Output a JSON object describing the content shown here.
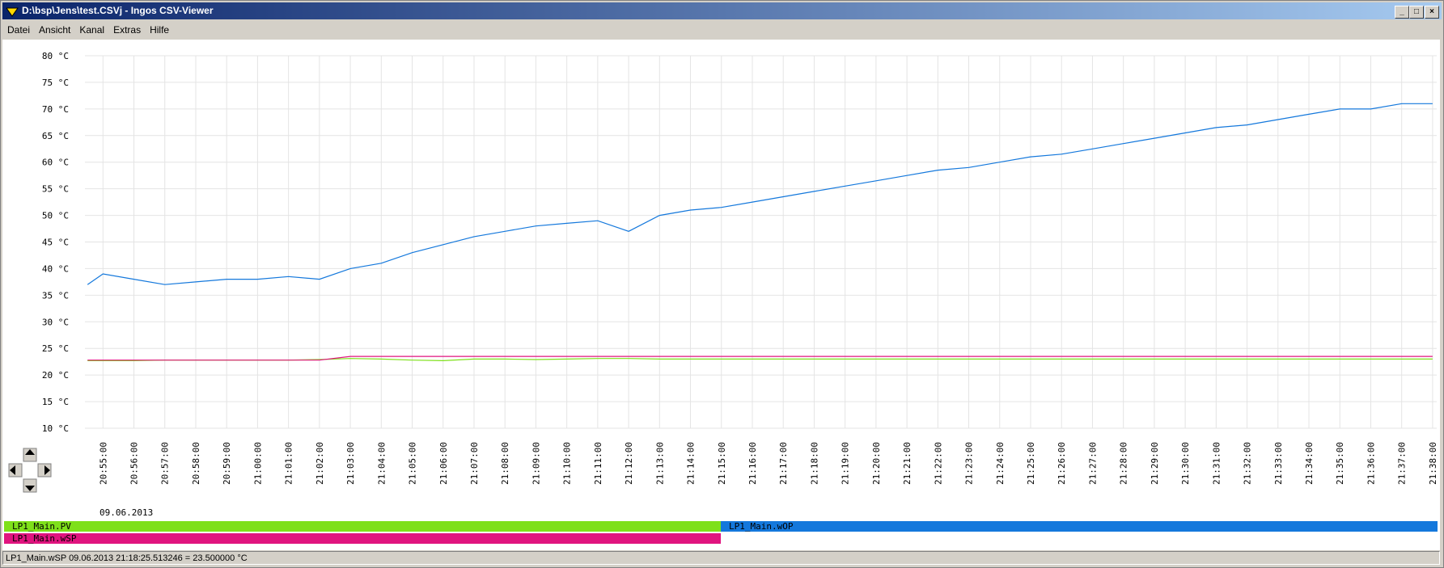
{
  "window": {
    "title": "D:\\bsp\\Jens\\test.CSVj - Ingos CSV-Viewer"
  },
  "menu": [
    "Datei",
    "Ansicht",
    "Kanal",
    "Extras",
    "Hilfe"
  ],
  "chart_data": {
    "type": "line",
    "xlabel": "09.06.2013",
    "x": [
      "20:54:30",
      "20:55:00",
      "20:56:00",
      "20:57:00",
      "20:58:00",
      "20:59:00",
      "21:00:00",
      "21:01:00",
      "21:02:00",
      "21:03:00",
      "21:04:00",
      "21:05:00",
      "21:06:00",
      "21:07:00",
      "21:08:00",
      "21:09:00",
      "21:10:00",
      "21:11:00",
      "21:12:00",
      "21:13:00",
      "21:14:00",
      "21:15:00",
      "21:16:00",
      "21:17:00",
      "21:18:00",
      "21:19:00",
      "21:20:00",
      "21:21:00",
      "21:22:00",
      "21:23:00",
      "21:24:00",
      "21:25:00",
      "21:26:00",
      "21:27:00",
      "21:28:00",
      "21:29:00",
      "21:30:00",
      "21:31:00",
      "21:32:00",
      "21:33:00",
      "21:34:00",
      "21:35:00",
      "21:36:00",
      "21:37:00",
      "21:38:00"
    ],
    "xlim": [
      "20:54:25",
      "21:38:08"
    ],
    "xticks": [
      "20:55:00",
      "20:56:00",
      "20:57:00",
      "20:58:00",
      "20:59:00",
      "21:00:00",
      "21:01:00",
      "21:02:00",
      "21:03:00",
      "21:04:00",
      "21:05:00",
      "21:06:00",
      "21:07:00",
      "21:08:00",
      "21:09:00",
      "21:10:00",
      "21:11:00",
      "21:12:00",
      "21:13:00",
      "21:14:00",
      "21:15:00",
      "21:16:00",
      "21:17:00",
      "21:18:00",
      "21:19:00",
      "21:20:00",
      "21:21:00",
      "21:22:00",
      "21:23:00",
      "21:24:00",
      "21:25:00",
      "21:26:00",
      "21:27:00",
      "21:28:00",
      "21:29:00",
      "21:30:00",
      "21:31:00",
      "21:32:00",
      "21:33:00",
      "21:34:00",
      "21:35:00",
      "21:36:00",
      "21:37:00",
      "21:38:00"
    ],
    "ylim": [
      10,
      80
    ],
    "yticks": [
      {
        "value": 10,
        "label": "10 °C"
      },
      {
        "value": 15,
        "label": "15 °C"
      },
      {
        "value": 20,
        "label": "20 °C"
      },
      {
        "value": 25,
        "label": "25 °C"
      },
      {
        "value": 30,
        "label": "30 °C"
      },
      {
        "value": 35,
        "label": "35 °C"
      },
      {
        "value": 40,
        "label": "40 °C"
      },
      {
        "value": 45,
        "label": "45 °C"
      },
      {
        "value": 50,
        "label": "50 °C"
      },
      {
        "value": 55,
        "label": "55 °C"
      },
      {
        "value": 60,
        "label": "60 °C"
      },
      {
        "value": 65,
        "label": "65 °C"
      },
      {
        "value": 70,
        "label": "70 °C"
      },
      {
        "value": 75,
        "label": "75 °C"
      },
      {
        "value": 80,
        "label": "80 °C"
      }
    ],
    "grid": true,
    "series": [
      {
        "name": "LP1_Main.PV",
        "color": "#7ee01a",
        "values": [
          22.7,
          22.7,
          22.7,
          22.8,
          22.8,
          22.8,
          22.8,
          22.8,
          22.9,
          23.1,
          23.0,
          22.8,
          22.7,
          23.0,
          23.0,
          22.9,
          23.0,
          23.1,
          23.1,
          23.0,
          23.0,
          23.0,
          23.0,
          23.0,
          23.0,
          23.0,
          23.0,
          23.0,
          23.0,
          23.0,
          23.0,
          23.0,
          23.0,
          23.0,
          23.0,
          23.0,
          23.0,
          23.0,
          23.0,
          23.0,
          23.0,
          23.0,
          23.0,
          23.0,
          23.0
        ]
      },
      {
        "name": "LP1_Main.wOP",
        "color": "#1478dc",
        "values": [
          37,
          39,
          38,
          37,
          37.5,
          38,
          38,
          38.5,
          38,
          40,
          41,
          43,
          44.5,
          46,
          47,
          48,
          48.5,
          49,
          47,
          50,
          51,
          51.5,
          52.5,
          53.5,
          54.5,
          55.5,
          56.5,
          57.5,
          58.5,
          59,
          60,
          61,
          61.5,
          62.5,
          63.5,
          64.5,
          65.5,
          66.5,
          67,
          68,
          69,
          70,
          70,
          71,
          71
        ]
      },
      {
        "name": "LP1_Main.wSP",
        "color": "#e0147f",
        "values": [
          22.8,
          22.8,
          22.8,
          22.8,
          22.8,
          22.8,
          22.8,
          22.8,
          22.8,
          23.5,
          23.5,
          23.5,
          23.5,
          23.5,
          23.5,
          23.5,
          23.5,
          23.5,
          23.5,
          23.5,
          23.5,
          23.5,
          23.5,
          23.5,
          23.5,
          23.5,
          23.5,
          23.5,
          23.5,
          23.5,
          23.5,
          23.5,
          23.5,
          23.5,
          23.5,
          23.5,
          23.5,
          23.5,
          23.5,
          23.5,
          23.5,
          23.5,
          23.5,
          23.5,
          23.5
        ]
      }
    ]
  },
  "status": "LP1_Main.wSP 09.06.2013 21:18:25.513246 = 23.500000 °C"
}
